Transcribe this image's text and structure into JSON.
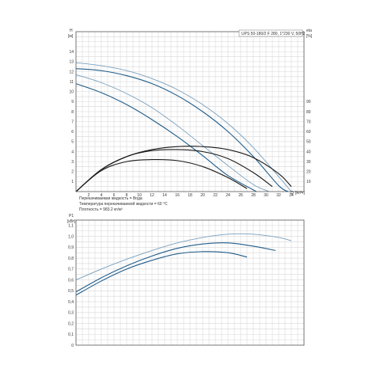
{
  "model_label": "UPS 50-180/2 F 280, 1*230 V, 50Hz",
  "fluid_notes": [
    "Перекачиваемая жидкость = Вода",
    "Температура перекачиваемой жидкости = 60 °C",
    "Плотность = 983.2 кг/м³"
  ],
  "colors": {
    "dark_curve": "#1a1a1a",
    "blue_curve": "#1f5c8a",
    "light_curve": "#7aa0be",
    "grid": "#d8d8d8"
  },
  "chart_data": [
    {
      "type": "line",
      "title": "",
      "ylabel": "H",
      "yunit": "[м]",
      "y2label": "eta",
      "y2unit": "[%]",
      "xlabel": "Q",
      "xunit": "[м³/ч]",
      "xlim": [
        0,
        36
      ],
      "ylim": [
        0,
        16
      ],
      "y2lim": [
        0,
        160
      ],
      "xticks": [
        2,
        4,
        6,
        8,
        10,
        12,
        14,
        16,
        18,
        20,
        22,
        24,
        26,
        28,
        30,
        32,
        34
      ],
      "yticks": [
        1,
        2,
        3,
        4,
        5,
        6,
        7,
        8,
        9,
        10,
        11,
        12,
        13,
        14
      ],
      "y2ticks": [
        10,
        20,
        30,
        40,
        50,
        60,
        70,
        80,
        90
      ],
      "grid": true,
      "series": [
        {
          "axis": "H",
          "style": "light",
          "x": [
            0,
            4,
            8,
            12,
            16,
            20,
            24,
            28,
            32,
            34
          ],
          "y": [
            12.9,
            12.6,
            12.1,
            11.3,
            10.2,
            8.7,
            6.8,
            4.4,
            1.5,
            0
          ]
        },
        {
          "axis": "H",
          "style": "blue",
          "x": [
            0,
            4,
            8,
            12,
            16,
            20,
            24,
            28,
            32,
            33.5
          ],
          "y": [
            12.3,
            12.1,
            11.6,
            10.8,
            9.6,
            8.0,
            6.0,
            3.5,
            0.6,
            0
          ]
        },
        {
          "axis": "H",
          "style": "light",
          "x": [
            0,
            4,
            8,
            12,
            16,
            20,
            24,
            28,
            30.5
          ],
          "y": [
            11.7,
            10.9,
            9.8,
            8.4,
            6.6,
            4.6,
            2.6,
            0.7,
            0
          ]
        },
        {
          "axis": "H",
          "style": "blue",
          "x": [
            0,
            4,
            8,
            12,
            16,
            20,
            24,
            28.5
          ],
          "y": [
            10.8,
            9.9,
            8.7,
            7.2,
            5.5,
            3.6,
            1.6,
            0
          ]
        },
        {
          "axis": "eta",
          "style": "dark",
          "x": [
            0,
            4,
            8,
            12,
            16,
            20,
            24,
            28,
            32,
            34
          ],
          "y": [
            0,
            22,
            35,
            42,
            45,
            45,
            42,
            34,
            18,
            5
          ]
        },
        {
          "axis": "eta",
          "style": "dark",
          "x": [
            0,
            4,
            8,
            12,
            16,
            20,
            24,
            28,
            31
          ],
          "y": [
            0,
            22,
            35,
            41,
            42,
            40,
            33,
            19,
            5
          ]
        },
        {
          "axis": "eta",
          "style": "dark",
          "x": [
            0,
            4,
            8,
            12,
            16,
            20,
            24,
            27
          ],
          "y": [
            0,
            21,
            30,
            32,
            31,
            25,
            14,
            3
          ]
        }
      ]
    },
    {
      "type": "line",
      "title": "",
      "ylabel": "P1",
      "yunit": "[кВт]",
      "xlim": [
        0,
        36
      ],
      "ylim": [
        0,
        1.15
      ],
      "yticks": [
        "0",
        "0,1",
        "0,2",
        "0,3",
        "0,4",
        "0,5",
        "0,6",
        "0,7",
        "0,8",
        "0,9",
        "1,0",
        "1,1"
      ],
      "ytick_values": [
        0,
        0.1,
        0.2,
        0.3,
        0.4,
        0.5,
        0.6,
        0.7,
        0.8,
        0.9,
        1.0,
        1.1
      ],
      "grid": true,
      "series": [
        {
          "style": "light",
          "x": [
            0,
            4,
            8,
            12,
            16,
            20,
            24,
            28,
            32,
            34
          ],
          "y": [
            0.6,
            0.7,
            0.79,
            0.87,
            0.94,
            0.99,
            1.02,
            1.02,
            0.99,
            0.96
          ]
        },
        {
          "style": "blue",
          "x": [
            0,
            4,
            8,
            12,
            16,
            20,
            24,
            28,
            31.5
          ],
          "y": [
            0.49,
            0.62,
            0.73,
            0.82,
            0.89,
            0.93,
            0.94,
            0.91,
            0.87
          ]
        },
        {
          "style": "blue",
          "x": [
            0,
            4,
            8,
            12,
            16,
            20,
            24,
            27
          ],
          "y": [
            0.46,
            0.59,
            0.7,
            0.78,
            0.84,
            0.86,
            0.85,
            0.81
          ]
        }
      ]
    }
  ]
}
